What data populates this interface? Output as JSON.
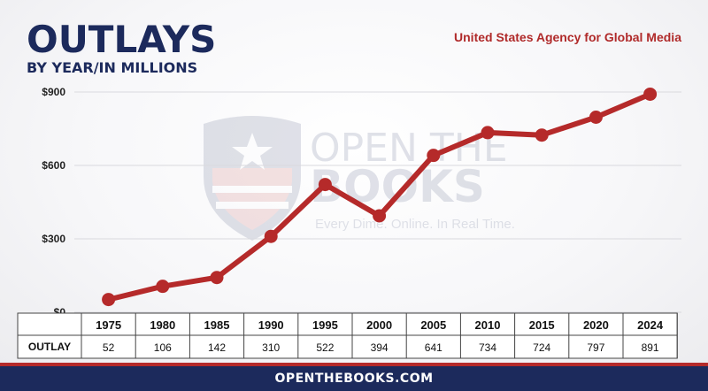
{
  "header": {
    "title": "OUTLAYS",
    "subtitle": "BY YEAR/IN MILLIONS",
    "agency": "United States Agency for Global Media"
  },
  "watermark": {
    "line1": "OPEN THE",
    "line2": "BOOKS",
    "tagline": "Every Dime. Online. In Real Time."
  },
  "footer": {
    "text": "OPENTHEBOOKS.COM"
  },
  "colors": {
    "navy": "#1c2a5c",
    "line": "#b52a2a",
    "accent_red": "#b02a2a"
  },
  "chart_data": {
    "type": "line",
    "title": "OUTLAYS",
    "subtitle": "BY YEAR/IN MILLIONS",
    "categories": [
      "1975",
      "1980",
      "1985",
      "1990",
      "1995",
      "2000",
      "2005",
      "2010",
      "2015",
      "2020",
      "2024"
    ],
    "series": [
      {
        "name": "OUTLAY",
        "values": [
          52,
          106,
          142,
          310,
          522,
          394,
          641,
          734,
          724,
          797,
          891
        ]
      }
    ],
    "y_ticks": [
      {
        "value": 0,
        "label": "$0"
      },
      {
        "value": 300,
        "label": "$300"
      },
      {
        "value": 600,
        "label": "$600"
      },
      {
        "value": 900,
        "label": "$900"
      }
    ],
    "ylim": [
      0,
      900
    ],
    "grid": true,
    "table_row_label": "OUTLAY",
    "table_values": [
      "52",
      "106",
      "142",
      "310",
      "522",
      "394",
      "641",
      "734",
      "724",
      "797",
      "891"
    ]
  }
}
